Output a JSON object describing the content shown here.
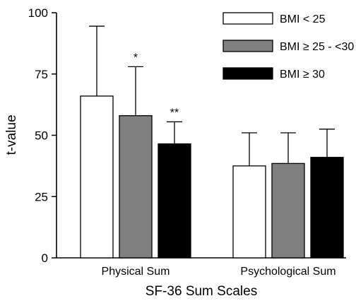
{
  "chart_data": {
    "type": "bar",
    "xlabel": "SF-36 Sum Scales",
    "ylabel": "t-value",
    "ylim": [
      0,
      100
    ],
    "yticks": [
      "0",
      "25",
      "50",
      "75",
      "100"
    ],
    "categories": [
      "Physical Sum",
      "Psychological Sum"
    ],
    "series": [
      {
        "name": "BMI < 25",
        "color": "#ffffff",
        "values": [
          66,
          37.5
        ],
        "error_upper": [
          94.5,
          51
        ],
        "markers": [
          "",
          ""
        ]
      },
      {
        "name": "BMI ≥ 25 - <30",
        "color": "#808080",
        "values": [
          58,
          38.5
        ],
        "error_upper": [
          78,
          51
        ],
        "markers": [
          "*",
          ""
        ]
      },
      {
        "name": "BMI ≥ 30",
        "color": "#000000",
        "values": [
          46.5,
          41
        ],
        "error_upper": [
          55.5,
          52.5
        ],
        "markers": [
          "**",
          ""
        ]
      }
    ],
    "grid": false,
    "legend_position": "top-right"
  }
}
